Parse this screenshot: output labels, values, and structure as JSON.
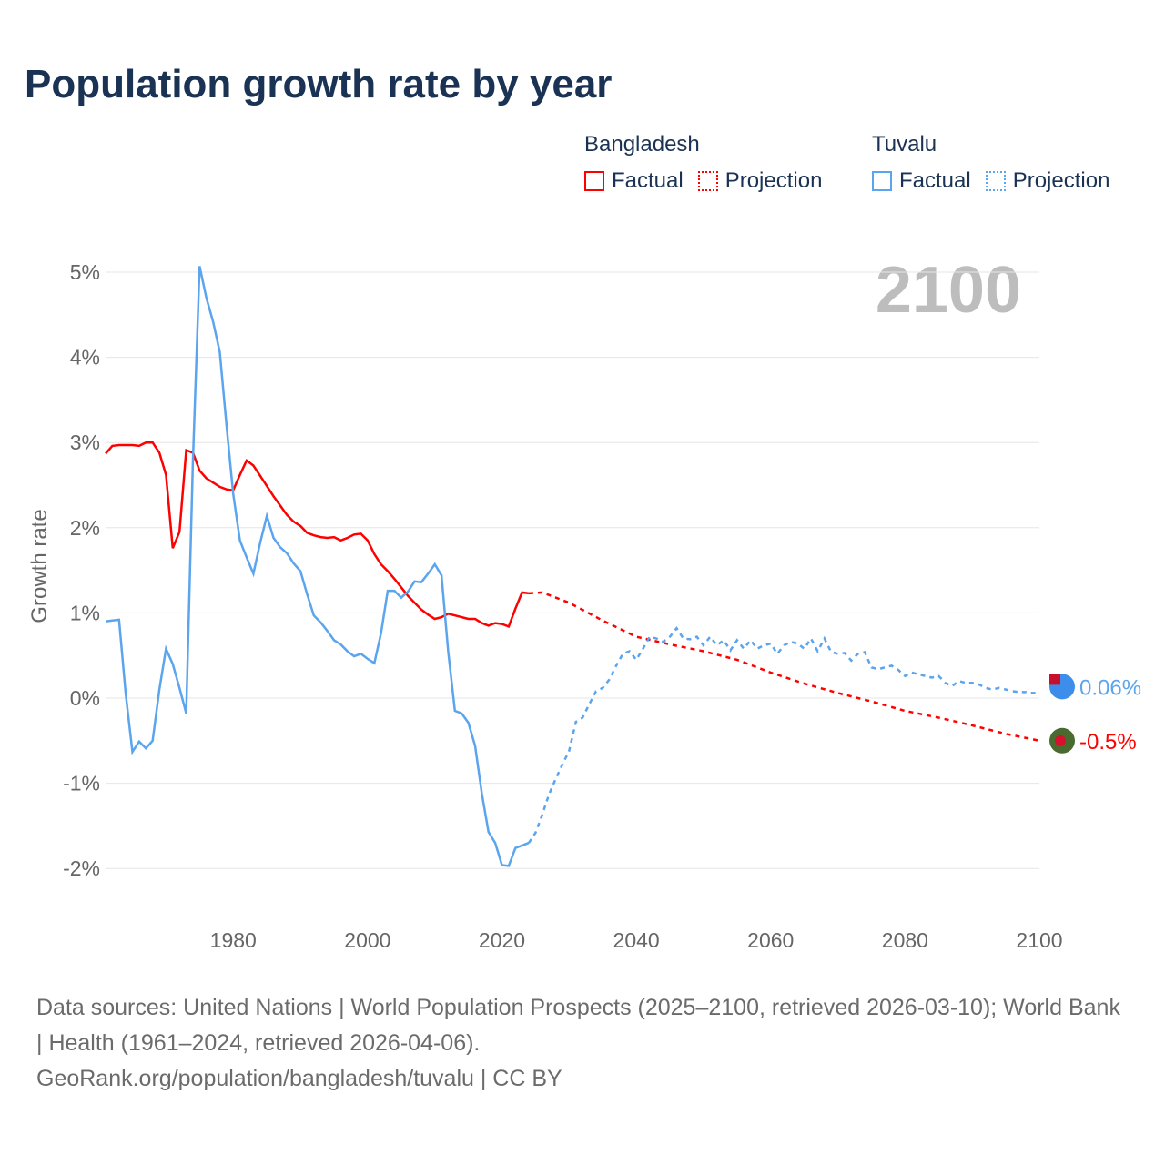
{
  "title": "Population growth rate by year",
  "legend": {
    "groups": [
      {
        "name": "Bangladesh",
        "color": "#ff0000",
        "factual_label": "Factual",
        "projection_label": "Projection"
      },
      {
        "name": "Tuvalu",
        "color": "#5ba4ee",
        "factual_label": "Factual",
        "projection_label": "Projection"
      }
    ]
  },
  "footer": {
    "sources": "Data sources: United Nations | World Population Prospects (2025–2100, retrieved 2026-03-10); World Bank | Health (1961–2024, retrieved 2026-04-06).",
    "credit": "GeoRank.org/population/bangladesh/tuvalu | CC BY"
  },
  "chart_data": {
    "type": "line",
    "title": "Population growth rate by year",
    "ylabel": "Growth rate",
    "xlabel": "",
    "xlim": [
      1961,
      2100
    ],
    "ylim": [
      -2.4,
      5.1
    ],
    "x_ticks": [
      1980,
      2000,
      2020,
      2040,
      2060,
      2080,
      2100
    ],
    "y_ticks": [
      -2,
      -1,
      0,
      1,
      2,
      3,
      4,
      5
    ],
    "y_tick_labels": [
      "-2%",
      "-1%",
      "0%",
      "1%",
      "2%",
      "3%",
      "4%",
      "5%"
    ],
    "x_tick_labels": [
      "1980",
      "2000",
      "2020",
      "2040",
      "2060",
      "2080",
      "2100"
    ],
    "grid": true,
    "year_watermark": "2100",
    "series": [
      {
        "name": "Bangladesh",
        "color": "#ff0000",
        "end_label": "-0.5%",
        "factual_start": 1961,
        "factual": [
          2.87,
          2.96,
          2.97,
          2.97,
          2.97,
          2.96,
          3.0,
          3.0,
          2.88,
          2.62,
          1.76,
          1.95,
          2.91,
          2.88,
          2.67,
          2.58,
          2.53,
          2.48,
          2.45,
          2.44,
          2.62,
          2.79,
          2.73,
          2.61,
          2.49,
          2.37,
          2.26,
          2.15,
          2.07,
          2.02,
          1.94,
          1.91,
          1.89,
          1.88,
          1.89,
          1.85,
          1.88,
          1.92,
          1.93,
          1.85,
          1.69,
          1.57,
          1.49,
          1.4,
          1.3,
          1.2,
          1.12,
          1.04,
          0.98,
          0.93,
          0.95,
          0.99,
          0.97,
          0.95,
          0.93,
          0.93,
          0.88,
          0.85,
          0.88,
          0.87,
          0.84,
          1.05,
          1.24,
          1.23
        ],
        "projection_years": [
          2024,
          2026,
          2030,
          2035,
          2040,
          2045,
          2050,
          2055,
          2060,
          2065,
          2070,
          2075,
          2080,
          2085,
          2090,
          2095,
          2100
        ],
        "projection": [
          1.23,
          1.24,
          1.12,
          0.91,
          0.72,
          0.63,
          0.55,
          0.45,
          0.3,
          0.17,
          0.06,
          -0.04,
          -0.15,
          -0.23,
          -0.32,
          -0.42,
          -0.5
        ]
      },
      {
        "name": "Tuvalu",
        "color": "#5ba4ee",
        "end_label": "0.06%",
        "factual_start": 1961,
        "factual": [
          0.9,
          0.91,
          0.92,
          0.05,
          -0.63,
          -0.51,
          -0.59,
          -0.5,
          0.1,
          0.58,
          0.4,
          0.12,
          -0.18,
          2.8,
          5.07,
          4.7,
          4.42,
          4.06,
          3.2,
          2.4,
          1.85,
          1.65,
          1.46,
          1.82,
          2.14,
          1.88,
          1.77,
          1.7,
          1.58,
          1.49,
          1.22,
          0.97,
          0.89,
          0.79,
          0.68,
          0.63,
          0.55,
          0.49,
          0.52,
          0.46,
          0.41,
          0.76,
          1.26,
          1.26,
          1.18,
          1.25,
          1.37,
          1.36,
          1.46,
          1.57,
          1.44,
          0.55,
          -0.15,
          -0.18,
          -0.29,
          -0.56,
          -1.12,
          -1.57,
          -1.7,
          -1.96,
          -1.97,
          -1.76,
          -1.73,
          -1.7
        ],
        "projection_start": 2024,
        "projection": [
          -1.7,
          -1.58,
          -1.37,
          -1.13,
          -0.95,
          -0.78,
          -0.62,
          -0.28,
          -0.23,
          -0.07,
          0.08,
          0.12,
          0.22,
          0.38,
          0.52,
          0.55,
          0.45,
          0.58,
          0.72,
          0.7,
          0.66,
          0.72,
          0.82,
          0.7,
          0.69,
          0.72,
          0.62,
          0.72,
          0.62,
          0.68,
          0.56,
          0.68,
          0.58,
          0.68,
          0.58,
          0.62,
          0.64,
          0.52,
          0.62,
          0.66,
          0.64,
          0.58,
          0.7,
          0.55,
          0.7,
          0.54,
          0.52,
          0.53,
          0.44,
          0.52,
          0.54,
          0.36,
          0.34,
          0.36,
          0.38,
          0.33,
          0.26,
          0.3,
          0.28,
          0.26,
          0.24,
          0.26,
          0.18,
          0.14,
          0.2,
          0.18,
          0.18,
          0.16,
          0.12,
          0.1,
          0.12,
          0.1,
          0.08,
          0.07,
          0.07,
          0.06,
          0.06
        ]
      }
    ]
  }
}
